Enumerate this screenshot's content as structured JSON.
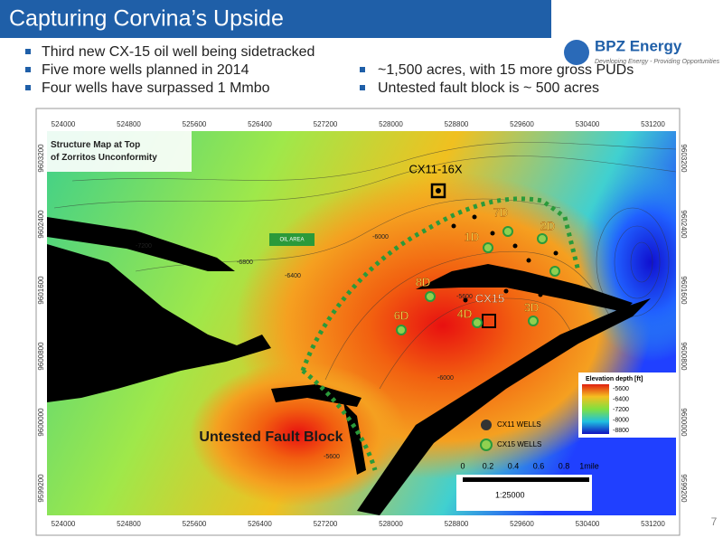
{
  "header": {
    "title": "Capturing Corvina’s Upside"
  },
  "bullets_left": [
    "Third new CX-15 oil well being sidetracked",
    "Five more wells planned in 2014",
    "Four wells have surpassed 1 Mmbo"
  ],
  "bullets_right": [
    "~1,500 acres, with 15 more gross PUDs",
    "Untested fault block is ~ 500 acres"
  ],
  "logo": {
    "name": "BPZ Energy",
    "tagline": "Developing Energy - Providing Opportunities"
  },
  "map": {
    "caption": "Structure Map at Top of Zorritos Unconformity",
    "x_labels": [
      "524000",
      "524800",
      "525600",
      "526400",
      "527200",
      "528000",
      "528800",
      "529600",
      "530400",
      "531200"
    ],
    "y_labels": [
      "9603200",
      "9602400",
      "9601600",
      "9600800",
      "9600000",
      "9599200"
    ],
    "wells": [
      "CX11-16X",
      "7D",
      "2D",
      "1D",
      "8D",
      "CX15",
      "4D",
      "3D",
      "6D"
    ],
    "oil_area": "OIL AREA",
    "fault_block": "Untested Fault Block",
    "contour_labels": [
      "-7200",
      "-6800",
      "-6400",
      "-6000",
      "-5600",
      "-6000",
      "-5600"
    ],
    "legend": {
      "title": "Elevation depth [ft]",
      "levels": [
        "-5600",
        "-6400",
        "-7200",
        "-8000",
        "-8800"
      ],
      "cx11": "CX11 WELLS",
      "cx15": "CX15 WELLS"
    },
    "scale": {
      "ticks": [
        "0",
        "0.2",
        "0.4",
        "0.6",
        "0.8",
        "1mile"
      ],
      "ratio": "1:25000"
    }
  },
  "page_number": "7"
}
